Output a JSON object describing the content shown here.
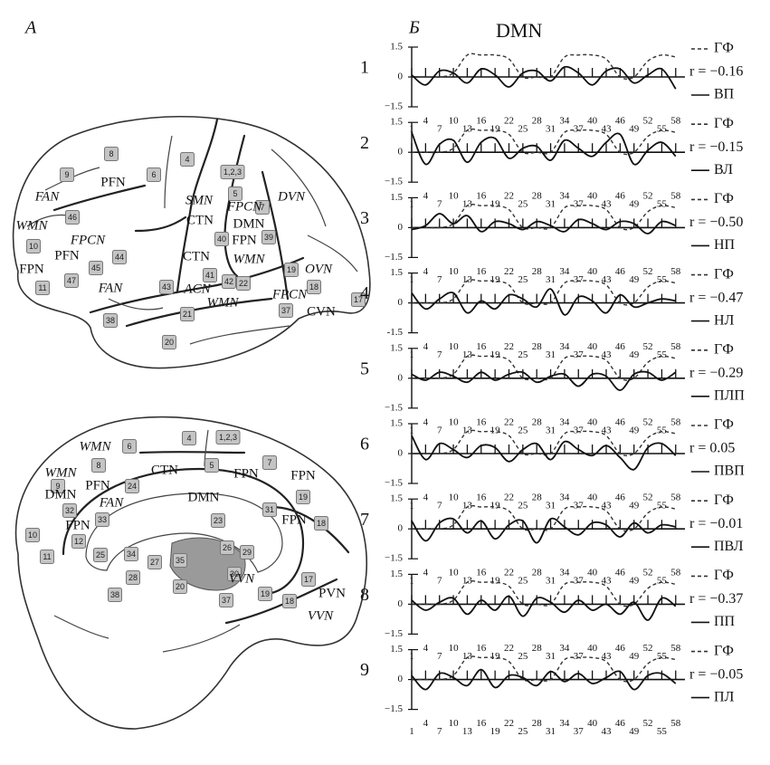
{
  "panel_a": {
    "label": "А",
    "lateral": {
      "areas": [
        "8",
        "9",
        "6",
        "4",
        "1,2,3",
        "5",
        "7",
        "46",
        "10",
        "45",
        "44",
        "43",
        "40",
        "39",
        "41",
        "42",
        "22",
        "19",
        "18",
        "17",
        "11",
        "47",
        "38",
        "21",
        "37",
        "20"
      ],
      "networks": [
        "PFN",
        "FAN",
        "SMN",
        "CTN",
        "FPCN",
        "DVN",
        "WMN",
        "FPCN",
        "DMN",
        "FPN",
        "PFN",
        "FPN",
        "CTN",
        "WMN",
        "FAN",
        "ACN",
        "FPCN",
        "WMN",
        "OVN",
        "CVN"
      ]
    },
    "medial": {
      "areas": [
        "6",
        "4",
        "1,2,3",
        "8",
        "5",
        "7",
        "9",
        "24",
        "19",
        "10",
        "32",
        "33",
        "31",
        "23",
        "18",
        "12",
        "25",
        "34",
        "26",
        "29",
        "27",
        "35",
        "30",
        "17",
        "18",
        "11",
        "28",
        "38",
        "19",
        "37",
        "20"
      ],
      "networks": [
        "WMN",
        "CTN",
        "FPN",
        "FPN",
        "WMN",
        "PFN",
        "FAN",
        "DMN",
        "DMN",
        "FPN",
        "FPN",
        "VVN",
        "PVN",
        "VVN"
      ]
    }
  },
  "panel_b": {
    "label": "Б",
    "title": "DMN"
  },
  "chart_data": [
    {
      "type": "line",
      "row_label": "1",
      "annotation": "r = −0.16",
      "xlim": [
        1,
        60
      ],
      "ylim": [
        -1.5,
        1.5
      ],
      "yticks": [
        {
          "value": -1.5,
          "label": "−1.5"
        },
        0,
        1.5
      ],
      "xticks": [
        1,
        4,
        7,
        10,
        13,
        16,
        19,
        22,
        25,
        28,
        31,
        34,
        37,
        40,
        43,
        46,
        49,
        52,
        55,
        58
      ],
      "x": [
        1,
        4,
        7,
        10,
        13,
        16,
        19,
        22,
        25,
        28,
        31,
        34,
        37,
        40,
        43,
        46,
        49,
        52,
        55,
        58
      ],
      "series": [
        {
          "name": "ГФ",
          "color": "#333333",
          "dashed": true,
          "values": [
            0,
            0,
            0,
            0.2,
            1.1,
            1.1,
            1.1,
            0.9,
            0,
            0,
            0,
            1.0,
            1.1,
            1.1,
            0.9,
            0,
            0,
            0.8,
            1.1,
            1.0
          ]
        },
        {
          "name": "ВП",
          "color": "#111111",
          "values": [
            0.1,
            -0.4,
            0.3,
            0.2,
            -0.3,
            0.4,
            0.1,
            -0.5,
            0.2,
            0.3,
            -0.2,
            0.5,
            0.2,
            -0.4,
            0.3,
            0.4,
            -0.3,
            0.1,
            0.4,
            -0.6
          ]
        }
      ]
    },
    {
      "type": "line",
      "row_label": "2",
      "annotation": "r = −0.15",
      "xlim": [
        1,
        60
      ],
      "ylim": [
        -1.5,
        1.5
      ],
      "yticks": [
        {
          "value": -1.5,
          "label": "−1.5"
        },
        0,
        1.5
      ],
      "xticks": [
        1,
        4,
        7,
        10,
        13,
        16,
        19,
        22,
        25,
        28,
        31,
        34,
        37,
        40,
        43,
        46,
        49,
        52,
        55,
        58
      ],
      "x": [
        1,
        4,
        7,
        10,
        13,
        16,
        19,
        22,
        25,
        28,
        31,
        34,
        37,
        40,
        43,
        46,
        49,
        52,
        55,
        58
      ],
      "series": [
        {
          "name": "ГФ",
          "color": "#333333",
          "dashed": true,
          "values": [
            0,
            0,
            0,
            0.2,
            1.1,
            1.1,
            1.1,
            0.9,
            0,
            0,
            0,
            1.0,
            1.1,
            1.1,
            0.9,
            0,
            0,
            0.8,
            1.1,
            1.0
          ]
        },
        {
          "name": "ВЛ",
          "color": "#111111",
          "values": [
            1.0,
            -0.6,
            0.4,
            0.6,
            -0.5,
            0.5,
            0.7,
            -0.3,
            0.2,
            0.3,
            -0.4,
            0.6,
            0.2,
            -0.2,
            0.5,
            0.9,
            -0.6,
            0.1,
            0.5,
            -0.2
          ]
        }
      ]
    },
    {
      "type": "line",
      "row_label": "3",
      "annotation": "r = −0.50",
      "xlim": [
        1,
        60
      ],
      "ylim": [
        -1.5,
        1.5
      ],
      "yticks": [
        {
          "value": -1.5,
          "label": "−1.5"
        },
        0,
        1.5
      ],
      "xticks": [
        1,
        4,
        7,
        10,
        13,
        16,
        19,
        22,
        25,
        28,
        31,
        34,
        37,
        40,
        43,
        46,
        49,
        52,
        55,
        58
      ],
      "x": [
        1,
        4,
        7,
        10,
        13,
        16,
        19,
        22,
        25,
        28,
        31,
        34,
        37,
        40,
        43,
        46,
        49,
        52,
        55,
        58
      ],
      "series": [
        {
          "name": "ГФ",
          "color": "#333333",
          "dashed": true,
          "values": [
            0,
            0,
            0,
            0.2,
            1.1,
            1.1,
            1.1,
            0.9,
            0,
            0,
            0,
            1.0,
            1.1,
            1.1,
            0.9,
            0,
            0,
            0.8,
            1.1,
            1.0
          ]
        },
        {
          "name": "НП",
          "color": "#111111",
          "values": [
            -0.1,
            0.1,
            0.7,
            0.2,
            0.6,
            -0.2,
            0.3,
            0.2,
            -0.1,
            0.3,
            0.1,
            -0.2,
            0.4,
            0.2,
            -0.1,
            0.3,
            0.2,
            -0.3,
            0.3,
            0.1
          ]
        }
      ]
    },
    {
      "type": "line",
      "row_label": "4",
      "annotation": "r = −0.47",
      "xlim": [
        1,
        60
      ],
      "ylim": [
        -1.5,
        1.5
      ],
      "yticks": [
        {
          "value": -1.5,
          "label": "-1.5"
        },
        0,
        1.5
      ],
      "xticks": [
        1,
        4,
        7,
        10,
        13,
        16,
        19,
        22,
        25,
        28,
        31,
        34,
        37,
        40,
        43,
        46,
        49,
        52,
        55,
        58
      ],
      "x": [
        1,
        4,
        7,
        10,
        13,
        16,
        19,
        22,
        25,
        28,
        31,
        34,
        37,
        40,
        43,
        46,
        49,
        52,
        55,
        58
      ],
      "series": [
        {
          "name": "ГФ",
          "color": "#333333",
          "dashed": true,
          "values": [
            0,
            0,
            0,
            0.2,
            1.1,
            1.1,
            1.1,
            0.9,
            0,
            0,
            0,
            1.0,
            1.1,
            1.1,
            0.9,
            0,
            0,
            0.8,
            1.1,
            1.0
          ]
        },
        {
          "name": "НЛ",
          "color": "#111111",
          "values": [
            0.5,
            -0.3,
            0.2,
            0.5,
            -0.5,
            0.1,
            -0.3,
            0.4,
            0.2,
            -0.2,
            0.7,
            -0.6,
            0.3,
            0.1,
            -0.5,
            0.4,
            -0.2,
            0.0,
            0.2,
            0.1
          ]
        }
      ]
    },
    {
      "type": "line",
      "row_label": "5",
      "annotation": "r = −0.29",
      "xlim": [
        1,
        60
      ],
      "ylim": [
        -1.5,
        1.5
      ],
      "yticks": [
        {
          "value": -1.5,
          "label": "−1.5"
        },
        0,
        1.5
      ],
      "xticks": [
        1,
        4,
        7,
        10,
        13,
        16,
        19,
        22,
        25,
        28,
        31,
        34,
        37,
        40,
        43,
        46,
        49,
        52,
        55,
        58
      ],
      "x": [
        1,
        4,
        7,
        10,
        13,
        16,
        19,
        22,
        25,
        28,
        31,
        34,
        37,
        40,
        43,
        46,
        49,
        52,
        55,
        58
      ],
      "series": [
        {
          "name": "ГФ",
          "color": "#333333",
          "dashed": true,
          "values": [
            0,
            0,
            0,
            0.2,
            1.1,
            1.1,
            1.1,
            0.9,
            0,
            0,
            0,
            1.0,
            1.1,
            1.1,
            0.9,
            0,
            0,
            0.8,
            1.1,
            1.0
          ]
        },
        {
          "name": "ПЛП",
          "color": "#111111",
          "values": [
            0.2,
            -0.1,
            0.3,
            0.1,
            -0.2,
            0.3,
            -0.1,
            0.2,
            0.3,
            -0.2,
            0.1,
            0.2,
            -0.4,
            0.2,
            0.1,
            -0.6,
            0.2,
            0.3,
            -0.1,
            0.3
          ]
        }
      ]
    },
    {
      "type": "line",
      "row_label": "6",
      "annotation": "r = 0.05",
      "xlim": [
        1,
        60
      ],
      "ylim": [
        -1.5,
        1.5
      ],
      "yticks": [
        {
          "value": -1.5,
          "label": "−1.5"
        },
        0,
        1.5
      ],
      "xticks": [
        1,
        4,
        7,
        10,
        13,
        16,
        19,
        22,
        25,
        28,
        31,
        34,
        37,
        40,
        43,
        46,
        49,
        52,
        55,
        58
      ],
      "x": [
        1,
        4,
        7,
        10,
        13,
        16,
        19,
        22,
        25,
        28,
        31,
        34,
        37,
        40,
        43,
        46,
        49,
        52,
        55,
        58
      ],
      "series": [
        {
          "name": "ГФ",
          "color": "#333333",
          "dashed": true,
          "values": [
            0,
            0,
            0,
            0.2,
            1.1,
            1.1,
            1.1,
            0.9,
            0,
            0,
            0,
            1.0,
            1.1,
            1.1,
            0.9,
            0,
            0,
            0.8,
            1.1,
            1.0
          ]
        },
        {
          "name": "ПВП",
          "color": "#111111",
          "values": [
            0.9,
            -0.3,
            0.5,
            0.2,
            -0.2,
            0.4,
            0.3,
            -0.4,
            0.2,
            0.5,
            -0.3,
            0.6,
            0.2,
            -0.1,
            0.4,
            -0.2,
            -0.8,
            0.3,
            0.5,
            -0.1
          ]
        }
      ]
    },
    {
      "type": "line",
      "row_label": "7",
      "annotation": "r = −0.01",
      "xlim": [
        1,
        60
      ],
      "ylim": [
        -1.5,
        1.5
      ],
      "yticks": [
        {
          "value": -1.5,
          "label": "−1.5"
        },
        0,
        1.5
      ],
      "xticks": [
        1,
        4,
        7,
        10,
        13,
        16,
        19,
        22,
        25,
        28,
        31,
        34,
        37,
        40,
        43,
        46,
        49,
        52,
        55,
        58
      ],
      "x": [
        1,
        4,
        7,
        10,
        13,
        16,
        19,
        22,
        25,
        28,
        31,
        34,
        37,
        40,
        43,
        46,
        49,
        52,
        55,
        58
      ],
      "series": [
        {
          "name": "ГФ",
          "color": "#333333",
          "dashed": true,
          "values": [
            0,
            0,
            0,
            0.2,
            1.1,
            1.1,
            1.1,
            0.9,
            0,
            0,
            0,
            1.0,
            1.1,
            1.1,
            0.9,
            0,
            0,
            0.8,
            1.1,
            1.0
          ]
        },
        {
          "name": "ПВЛ",
          "color": "#111111",
          "values": [
            0.4,
            -0.6,
            0.3,
            0.5,
            -0.2,
            0.4,
            -0.5,
            0.2,
            0.4,
            -0.7,
            0.5,
            0.1,
            -0.3,
            0.3,
            0.2,
            -0.4,
            0.3,
            -0.2,
            0.2,
            0.1
          ]
        }
      ]
    },
    {
      "type": "line",
      "row_label": "8",
      "annotation": "r = −0.37",
      "xlim": [
        1,
        60
      ],
      "ylim": [
        -1.5,
        1.5
      ],
      "yticks": [
        {
          "value": -1.5,
          "label": "−1.5"
        },
        0,
        1.5
      ],
      "xticks": [
        1,
        4,
        7,
        10,
        13,
        16,
        19,
        22,
        25,
        28,
        31,
        34,
        37,
        40,
        43,
        46,
        49,
        52,
        55,
        58
      ],
      "x": [
        1,
        4,
        7,
        10,
        13,
        16,
        19,
        22,
        25,
        28,
        31,
        34,
        37,
        40,
        43,
        46,
        49,
        52,
        55,
        58
      ],
      "series": [
        {
          "name": "ГФ",
          "color": "#333333",
          "dashed": true,
          "values": [
            0,
            0,
            0,
            0.2,
            1.1,
            1.1,
            1.1,
            0.9,
            0,
            0,
            0,
            1.0,
            1.1,
            1.1,
            0.9,
            0,
            0,
            0.8,
            1.1,
            1.0
          ]
        },
        {
          "name": "ПП",
          "color": "#111111",
          "values": [
            0.2,
            -0.3,
            0.1,
            0.3,
            -0.5,
            0.2,
            -0.3,
            0.4,
            -0.6,
            0.3,
            0.1,
            -0.4,
            0.2,
            -0.3,
            0.0,
            -0.5,
            0.1,
            -0.8,
            0.3,
            -0.1
          ]
        }
      ]
    },
    {
      "type": "line",
      "row_label": "9",
      "annotation": "r = −0.05",
      "xlim": [
        1,
        60
      ],
      "ylim": [
        -1.5,
        1.5
      ],
      "yticks": [
        {
          "value": -1.5,
          "label": "−1.5"
        },
        0,
        1.5
      ],
      "xticks": [
        1,
        4,
        7,
        10,
        13,
        16,
        19,
        22,
        25,
        28,
        31,
        34,
        37,
        40,
        43,
        46,
        49,
        52,
        55,
        58
      ],
      "x": [
        1,
        4,
        7,
        10,
        13,
        16,
        19,
        22,
        25,
        28,
        31,
        34,
        37,
        40,
        43,
        46,
        49,
        52,
        55,
        58
      ],
      "series": [
        {
          "name": "ГФ",
          "color": "#333333",
          "dashed": true,
          "values": [
            0,
            0,
            0,
            0.2,
            1.1,
            1.1,
            1.1,
            0.9,
            0,
            0,
            0,
            1.0,
            1.1,
            1.1,
            0.9,
            0,
            0,
            0.8,
            1.1,
            1.0
          ]
        },
        {
          "name": "ПЛ",
          "color": "#111111",
          "values": [
            0.2,
            -0.5,
            0.3,
            0.1,
            -0.3,
            0.5,
            -0.4,
            0.2,
            0.1,
            -0.3,
            0.4,
            -0.1,
            0.3,
            -0.2,
            0.1,
            0.4,
            -0.5,
            0.2,
            0.3,
            -0.2
          ]
        }
      ]
    }
  ]
}
